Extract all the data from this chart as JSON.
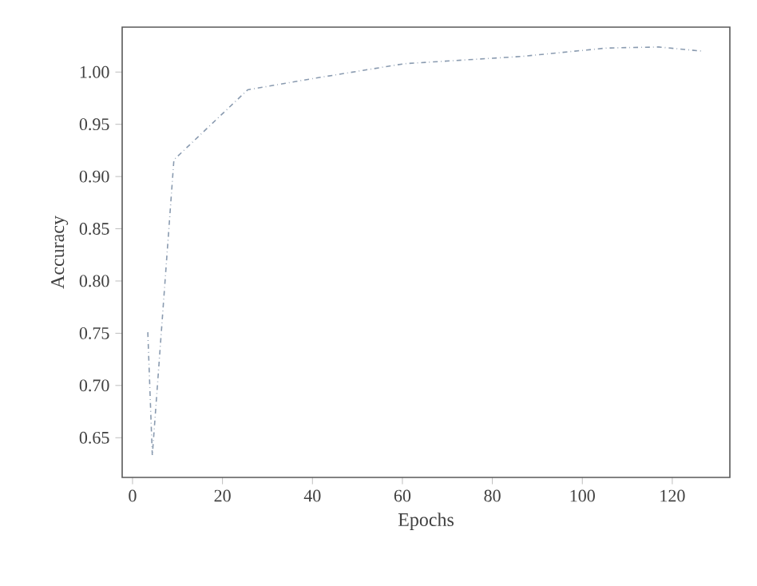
{
  "chart_data": {
    "type": "line",
    "xlabel": "Epochs",
    "ylabel": "Accuracy",
    "x": [
      3.4,
      4.4,
      9.2,
      25.6,
      39,
      60.4,
      86.6,
      105.4,
      117,
      126.7
    ],
    "values": [
      0.751,
      0.633,
      0.916,
      0.983,
      0.993,
      1.008,
      1.015,
      1.023,
      1.024,
      1.02
    ],
    "color": "#8a9bb0",
    "line_style": "dashdotted",
    "marker": "none",
    "grid": false,
    "xlim": [
      -2.3,
      132.8
    ],
    "ylim": [
      0.612,
      1.043
    ],
    "xticks": [
      0,
      20,
      40,
      60,
      80,
      100,
      120
    ],
    "yticks": [
      {
        "value": 0.65,
        "label": "0.65"
      },
      {
        "value": 0.7,
        "label": "0.70"
      },
      {
        "value": 0.75,
        "label": "0.75"
      },
      {
        "value": 0.8,
        "label": "0.80"
      },
      {
        "value": 0.85,
        "label": "0.85"
      },
      {
        "value": 0.9,
        "label": "0.90"
      },
      {
        "value": 0.95,
        "label": "0.95"
      },
      {
        "value": 1.0,
        "label": "1.00"
      }
    ]
  }
}
